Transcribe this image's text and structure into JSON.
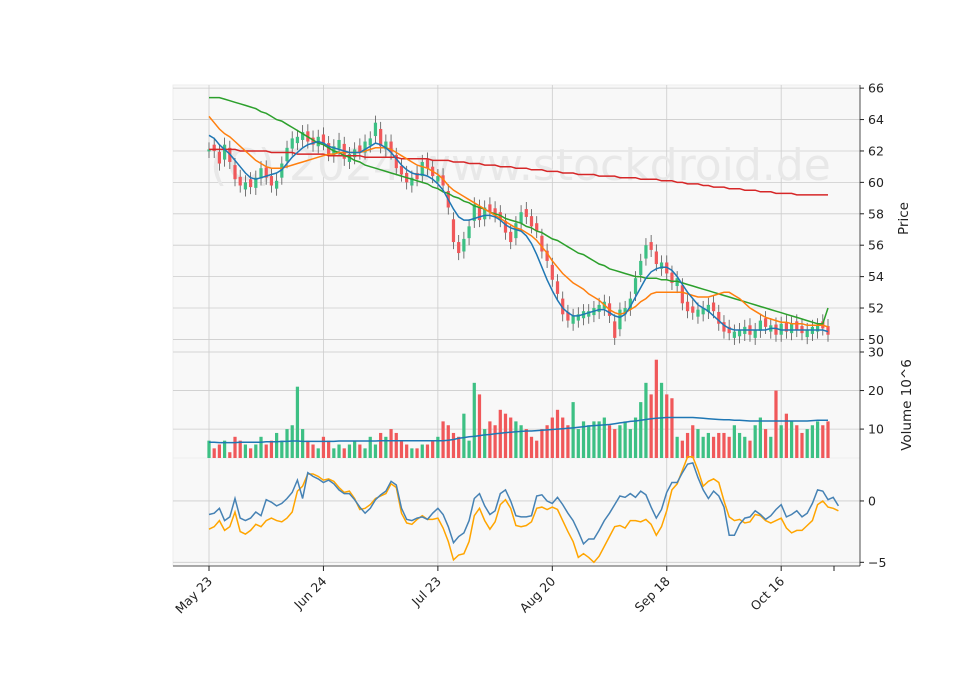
{
  "chart_data": {
    "type": "candlestick",
    "watermark": "(C) 2024 www.stockdroid.de",
    "colors": {
      "up": "#3dc084",
      "down": "#f0585a",
      "ma_fast": "#1f77b4",
      "ma_mid": "#ff7f0e",
      "ma_slow": "#2ca02c",
      "ma_long": "#d62728",
      "vol_ma": "#1f77b4",
      "osc_a": "#4682b4",
      "osc_b": "#ffa500",
      "grid": "#cccccc",
      "panel_bg": "#f8f8f8"
    },
    "x_ticks": [
      "May 23",
      "Jun 24",
      "Jul 23",
      "Aug 20",
      "Sep 18",
      "Oct 16"
    ],
    "x_tick_index": [
      0,
      22,
      44,
      66,
      88,
      110
    ],
    "price_axis": {
      "label": "Price",
      "range": [
        49.2,
        66.2
      ],
      "ticks": [
        50,
        52,
        54,
        56,
        58,
        60,
        62,
        64,
        66
      ]
    },
    "volume_axis": {
      "label": "Volume  10^6",
      "range": [
        2.5,
        30
      ],
      "ticks": [
        10,
        20,
        30
      ]
    },
    "osc_axis": {
      "range": [
        -5.3,
        3.5
      ],
      "ticks": [
        -5,
        0
      ]
    },
    "close": [
      62.1,
      62.0,
      61.2,
      62.4,
      61.3,
      60.2,
      59.8,
      60.0,
      59.7,
      60.3,
      60.9,
      60.3,
      59.8,
      60.1,
      61.2,
      62.2,
      62.8,
      62.9,
      63.2,
      62.6,
      62.4,
      62.9,
      62.5,
      61.8,
      62.3,
      62.7,
      61.5,
      61.8,
      62.1,
      61.9,
      62.6,
      62.8,
      63.8,
      62.3,
      62.6,
      61.9,
      60.9,
      60.5,
      60.0,
      60.3,
      60.2,
      61.3,
      60.9,
      60.4,
      60.4,
      59.8,
      58.4,
      56.2,
      55.5,
      56.4,
      57.2,
      58.6,
      57.6,
      58.4,
      58.1,
      57.9,
      57.6,
      56.8,
      56.2,
      57.4,
      58.1,
      57.8,
      57.2,
      56.9,
      55.6,
      55.0,
      53.8,
      52.9,
      51.6,
      51.2,
      51.5,
      51.6,
      51.8,
      51.8,
      52.0,
      52.2,
      52.4,
      51.5,
      50.1,
      51.9,
      52.0,
      52.6,
      53.9,
      55.0,
      56.0,
      55.7,
      54.8,
      54.9,
      54.2,
      53.6,
      53.9,
      52.3,
      51.8,
      51.7,
      51.9,
      52.0,
      52.2,
      51.8,
      51.0,
      50.5,
      50.4,
      50.5,
      50.6,
      50.8,
      50.3,
      50.6,
      51.2,
      50.8,
      50.9,
      50.3,
      51.0,
      50.5,
      51.0,
      50.6,
      50.4,
      50.6,
      50.8,
      50.9,
      50.7,
      50.3
    ],
    "change_sign": [
      1,
      -1,
      -1,
      1,
      -1,
      -1,
      -1,
      1,
      -1,
      1,
      1,
      -1,
      -1,
      1,
      1,
      1,
      1,
      1,
      1,
      -1,
      -1,
      1,
      -1,
      -1,
      1,
      1,
      -1,
      1,
      1,
      -1,
      1,
      1,
      1,
      -1,
      1,
      -1,
      -1,
      -1,
      -1,
      1,
      -1,
      1,
      -1,
      -1,
      1,
      -1,
      -1,
      -1,
      -1,
      1,
      1,
      1,
      -1,
      1,
      -1,
      -1,
      -1,
      -1,
      -1,
      1,
      1,
      -1,
      -1,
      -1,
      -1,
      -1,
      -1,
      -1,
      -1,
      -1,
      1,
      1,
      1,
      1,
      1,
      1,
      1,
      -1,
      -1,
      1,
      1,
      1,
      1,
      1,
      1,
      -1,
      -1,
      1,
      -1,
      -1,
      1,
      -1,
      -1,
      -1,
      1,
      1,
      1,
      -1,
      -1,
      -1,
      -1,
      1,
      1,
      1,
      -1,
      1,
      1,
      -1,
      1,
      -1,
      1,
      -1,
      1,
      -1,
      -1,
      1,
      1,
      1,
      -1,
      -1
    ],
    "volume": [
      7,
      5,
      6,
      7,
      4,
      8,
      7,
      6,
      5,
      6,
      8,
      6,
      7,
      9,
      7,
      10,
      11,
      21,
      10,
      7,
      6,
      5,
      8,
      7,
      5,
      6,
      5,
      6,
      7,
      6,
      5,
      8,
      6,
      9,
      8,
      10,
      9,
      7,
      6,
      5,
      5,
      6,
      6,
      7,
      8,
      12,
      11,
      9,
      8,
      14,
      7,
      22,
      19,
      10,
      12,
      11,
      15,
      14,
      13,
      12,
      11,
      10,
      8,
      7,
      10,
      11,
      13,
      15,
      13,
      11,
      17,
      10,
      12,
      11,
      12,
      12,
      13,
      11,
      10,
      11,
      12,
      10,
      13,
      17,
      22,
      19,
      28,
      22,
      19,
      18,
      8,
      7,
      9,
      11,
      10,
      8,
      9,
      8,
      9,
      9,
      8,
      11,
      9,
      8,
      7,
      11,
      13,
      10,
      8,
      20,
      11,
      14,
      12,
      11,
      9,
      10,
      11,
      12,
      11,
      12
    ],
    "ma_fast": [
      63.0,
      62.8,
      62.4,
      62.1,
      61.8,
      61.4,
      61.0,
      60.6,
      60.3,
      60.2,
      60.3,
      60.4,
      60.5,
      60.6,
      60.8,
      61.2,
      61.6,
      61.9,
      62.2,
      62.4,
      62.5,
      62.6,
      62.5,
      62.3,
      62.2,
      62.1,
      62.0,
      61.9,
      61.9,
      61.9,
      62.1,
      62.3,
      62.5,
      62.4,
      62.2,
      61.9,
      61.5,
      61.1,
      60.8,
      60.6,
      60.5,
      60.5,
      60.4,
      60.2,
      59.9,
      59.5,
      58.9,
      58.3,
      57.8,
      57.6,
      57.6,
      57.7,
      57.8,
      57.9,
      57.9,
      57.8,
      57.6,
      57.3,
      57.1,
      57.0,
      56.9,
      56.6,
      56.1,
      55.4,
      54.6,
      53.8,
      53.1,
      52.5,
      52.0,
      51.7,
      51.5,
      51.5,
      51.6,
      51.7,
      51.8,
      51.9,
      51.9,
      51.7,
      51.5,
      51.4,
      51.6,
      52.1,
      52.7,
      53.3,
      53.9,
      54.3,
      54.5,
      54.6,
      54.6,
      54.4,
      54.0,
      53.5,
      53.0,
      52.6,
      52.2,
      52.0,
      51.8,
      51.5,
      51.2,
      50.9,
      50.7,
      50.6,
      50.6,
      50.6,
      50.6,
      50.6,
      50.6,
      50.6,
      50.7,
      50.7,
      50.6,
      50.6,
      50.6,
      50.6,
      50.6,
      50.6,
      50.6,
      50.6,
      50.6,
      50.5
    ],
    "ma_mid": [
      64.2,
      63.8,
      63.4,
      63.1,
      62.9,
      62.6,
      62.3,
      62.0,
      61.7,
      61.4,
      61.2,
      61.0,
      60.9,
      60.9,
      60.9,
      61.0,
      61.1,
      61.2,
      61.3,
      61.4,
      61.5,
      61.6,
      61.7,
      61.8,
      61.8,
      61.9,
      61.9,
      61.9,
      61.9,
      61.9,
      62.0,
      62.1,
      62.2,
      62.2,
      62.2,
      62.1,
      61.9,
      61.7,
      61.5,
      61.3,
      61.1,
      61.0,
      60.9,
      60.7,
      60.5,
      60.2,
      59.8,
      59.5,
      59.3,
      59.1,
      58.9,
      58.7,
      58.5,
      58.3,
      58.1,
      57.9,
      57.7,
      57.5,
      57.3,
      57.1,
      57.0,
      56.8,
      56.6,
      56.3,
      55.9,
      55.5,
      55.0,
      54.6,
      54.2,
      53.9,
      53.6,
      53.4,
      53.2,
      52.9,
      52.7,
      52.5,
      52.2,
      51.9,
      51.7,
      51.6,
      51.7,
      51.9,
      52.1,
      52.4,
      52.6,
      52.9,
      53.0,
      53.0,
      53.0,
      53.0,
      53.0,
      53.0,
      52.9,
      52.8,
      52.7,
      52.7,
      52.7,
      52.8,
      52.9,
      53.0,
      53.0,
      52.8,
      52.6,
      52.3,
      52.0,
      51.8,
      51.6,
      51.4,
      51.3,
      51.2,
      51.1,
      51.1,
      51.0,
      51.0,
      51.0,
      50.9,
      50.9,
      50.9,
      50.9,
      50.8
    ],
    "ma_slow": [
      65.4,
      65.4,
      65.4,
      65.3,
      65.2,
      65.1,
      65.0,
      64.9,
      64.8,
      64.7,
      64.5,
      64.4,
      64.2,
      64.0,
      63.9,
      63.7,
      63.5,
      63.3,
      63.1,
      62.9,
      62.7,
      62.5,
      62.4,
      62.2,
      62.0,
      61.9,
      61.7,
      61.6,
      61.4,
      61.3,
      61.1,
      61.0,
      60.9,
      60.8,
      60.7,
      60.6,
      60.5,
      60.4,
      60.3,
      60.2,
      60.1,
      60.0,
      59.9,
      59.7,
      59.6,
      59.4,
      59.3,
      59.1,
      59.0,
      58.8,
      58.7,
      58.5,
      58.4,
      58.3,
      58.1,
      58.0,
      57.9,
      57.7,
      57.6,
      57.5,
      57.4,
      57.2,
      57.1,
      56.9,
      56.8,
      56.6,
      56.4,
      56.3,
      56.1,
      55.9,
      55.7,
      55.5,
      55.4,
      55.2,
      55.0,
      54.8,
      54.7,
      54.5,
      54.4,
      54.3,
      54.2,
      54.1,
      54.0,
      54.0,
      53.9,
      53.9,
      53.9,
      53.8,
      53.8,
      53.7,
      53.7,
      53.6,
      53.5,
      53.4,
      53.3,
      53.2,
      53.1,
      53.0,
      52.9,
      52.8,
      52.7,
      52.6,
      52.5,
      52.4,
      52.3,
      52.2,
      52.1,
      52.0,
      51.9,
      51.8,
      51.7,
      51.6,
      51.5,
      51.4,
      51.3,
      51.2,
      51.1,
      51.0,
      51.0,
      52.0
    ],
    "ma_long": [
      62.1,
      62.1,
      62.1,
      62.1,
      62.1,
      62.1,
      62.0,
      62.0,
      62.0,
      62.0,
      62.0,
      62.0,
      61.9,
      61.9,
      61.9,
      61.9,
      61.9,
      61.8,
      61.8,
      61.8,
      61.8,
      61.8,
      61.8,
      61.7,
      61.7,
      61.7,
      61.7,
      61.7,
      61.7,
      61.7,
      61.6,
      61.6,
      61.6,
      61.6,
      61.6,
      61.6,
      61.6,
      61.5,
      61.5,
      61.5,
      61.5,
      61.5,
      61.5,
      61.4,
      61.4,
      61.4,
      61.4,
      61.3,
      61.3,
      61.3,
      61.2,
      61.2,
      61.2,
      61.1,
      61.1,
      61.1,
      61.0,
      61.0,
      61.0,
      60.9,
      60.9,
      60.9,
      60.8,
      60.8,
      60.8,
      60.7,
      60.7,
      60.7,
      60.6,
      60.6,
      60.6,
      60.5,
      60.5,
      60.5,
      60.5,
      60.4,
      60.4,
      60.4,
      60.4,
      60.3,
      60.3,
      60.3,
      60.3,
      60.2,
      60.2,
      60.2,
      60.2,
      60.1,
      60.1,
      60.1,
      60.0,
      60.0,
      59.9,
      59.9,
      59.9,
      59.8,
      59.8,
      59.7,
      59.7,
      59.7,
      59.6,
      59.6,
      59.6,
      59.5,
      59.5,
      59.5,
      59.4,
      59.4,
      59.4,
      59.3,
      59.3,
      59.3,
      59.3,
      59.2,
      59.2,
      59.2,
      59.2,
      59.2,
      59.2,
      59.2
    ],
    "vol_ma": [
      6.6,
      6.6,
      6.5,
      6.5,
      6.5,
      6.5,
      6.6,
      6.6,
      6.6,
      6.6,
      6.6,
      6.7,
      6.7,
      6.7,
      6.8,
      6.8,
      6.9,
      6.9,
      6.8,
      6.8,
      6.8,
      6.8,
      6.8,
      6.8,
      6.8,
      6.9,
      6.9,
      6.9,
      6.9,
      6.9,
      6.9,
      6.9,
      6.9,
      7.0,
      7.0,
      7.0,
      7.0,
      7.0,
      7.0,
      7.0,
      7.0,
      7.0,
      7.0,
      7.0,
      7.0,
      7.0,
      7.1,
      7.3,
      7.6,
      7.8,
      8.0,
      8.1,
      8.3,
      8.5,
      8.6,
      8.8,
      8.9,
      9.1,
      9.2,
      9.3,
      9.4,
      9.5,
      9.5,
      9.6,
      9.7,
      9.8,
      9.9,
      10.0,
      10.1,
      10.2,
      10.3,
      10.5,
      10.6,
      10.8,
      10.9,
      11.0,
      11.1,
      11.2,
      11.4,
      11.6,
      11.8,
      12.0,
      12.1,
      12.3,
      12.5,
      12.7,
      12.8,
      12.9,
      13.0,
      13.0,
      13.0,
      13.0,
      13.0,
      13.0,
      12.9,
      12.8,
      12.7,
      12.6,
      12.5,
      12.4,
      12.4,
      12.3,
      12.3,
      12.2,
      12.1,
      12.1,
      12.1,
      12.1,
      12.1,
      12.1,
      12.1,
      12.1,
      12.1,
      12.1,
      12.1,
      12.1,
      12.2,
      12.3,
      12.3,
      12.3
    ],
    "osc_a": [
      -1.1,
      -1.0,
      -0.6,
      -1.6,
      -1.3,
      0.2,
      -1.4,
      -1.6,
      -1.4,
      -0.9,
      -1.2,
      0.1,
      -0.1,
      -0.4,
      -0.2,
      0.2,
      0.7,
      1.7,
      0.2,
      2.3,
      2.0,
      1.8,
      1.5,
      1.7,
      1.4,
      0.9,
      0.6,
      0.6,
      0.1,
      -0.5,
      -1.0,
      -0.6,
      0.1,
      0.5,
      0.8,
      1.6,
      1.3,
      -0.6,
      -1.5,
      -1.6,
      -1.4,
      -1.3,
      -1.5,
      -1.0,
      -0.6,
      -1.1,
      -2.1,
      -3.4,
      -2.9,
      -2.6,
      -1.6,
      0.2,
      0.6,
      -0.4,
      -1.1,
      -0.8,
      0.6,
      0.9,
      0.0,
      -1.2,
      -1.3,
      -1.3,
      -1.2,
      0.4,
      0.5,
      0.0,
      -0.2,
      0.3,
      -0.3,
      -1.0,
      -1.6,
      -2.5,
      -3.5,
      -3.1,
      -3.1,
      -2.4,
      -1.6,
      -1.0,
      -0.3,
      0.4,
      0.3,
      0.6,
      0.3,
      0.8,
      0.5,
      -0.5,
      -1.4,
      -0.7,
      0.7,
      1.5,
      1.5,
      2.3,
      3.0,
      3.1,
      1.9,
      0.9,
      0.2,
      0.8,
      0.4,
      -0.5,
      -2.8,
      -2.8,
      -1.9,
      -1.4,
      -1.3,
      -0.8,
      -1.1,
      -1.5,
      -1.2,
      -0.7,
      -0.3,
      -1.3,
      -1.1,
      -0.8,
      -1.3,
      -1.0,
      -0.2,
      0.9,
      0.8,
      0.1,
      0.3,
      -0.4
    ],
    "osc_b": [
      -2.3,
      -2.1,
      -1.6,
      -2.4,
      -2.1,
      -0.9,
      -2.5,
      -2.7,
      -2.4,
      -1.9,
      -2.1,
      -1.6,
      -1.4,
      -1.6,
      -1.7,
      -1.4,
      -0.9,
      0.8,
      1.2,
      2.2,
      2.2,
      2.0,
      1.7,
      1.8,
      1.6,
      1.1,
      0.7,
      0.8,
      0.2,
      -0.7,
      -0.6,
      -0.3,
      0.2,
      0.4,
      0.6,
      1.4,
      1.1,
      -1.0,
      -1.8,
      -1.9,
      -1.5,
      -1.2,
      -1.5,
      -1.5,
      -1.4,
      -2.2,
      -3.3,
      -4.8,
      -4.4,
      -4.3,
      -3.3,
      -1.2,
      -0.6,
      -1.6,
      -2.3,
      -1.7,
      -0.3,
      0.1,
      -0.6,
      -2.0,
      -2.1,
      -2.0,
      -1.7,
      -0.6,
      -0.5,
      -0.7,
      -0.5,
      -0.7,
      -1.6,
      -2.5,
      -3.3,
      -4.6,
      -4.3,
      -4.6,
      -5.0,
      -4.5,
      -3.7,
      -2.9,
      -2.1,
      -2.0,
      -2.2,
      -1.6,
      -1.6,
      -1.7,
      -1.5,
      -1.9,
      -2.8,
      -2.1,
      -0.8,
      0.9,
      1.4,
      2.5,
      3.6,
      3.6,
      2.5,
      1.2,
      1.6,
      1.8,
      1.5,
      0.0,
      -1.3,
      -1.6,
      -1.5,
      -1.8,
      -1.7,
      -1.1,
      -1.2,
      -1.6,
      -1.8,
      -1.6,
      -1.4,
      -2.2,
      -2.6,
      -2.4,
      -2.4,
      -2.0,
      -1.6,
      -0.3,
      0.0,
      -0.5,
      -0.6,
      -0.8
    ]
  }
}
